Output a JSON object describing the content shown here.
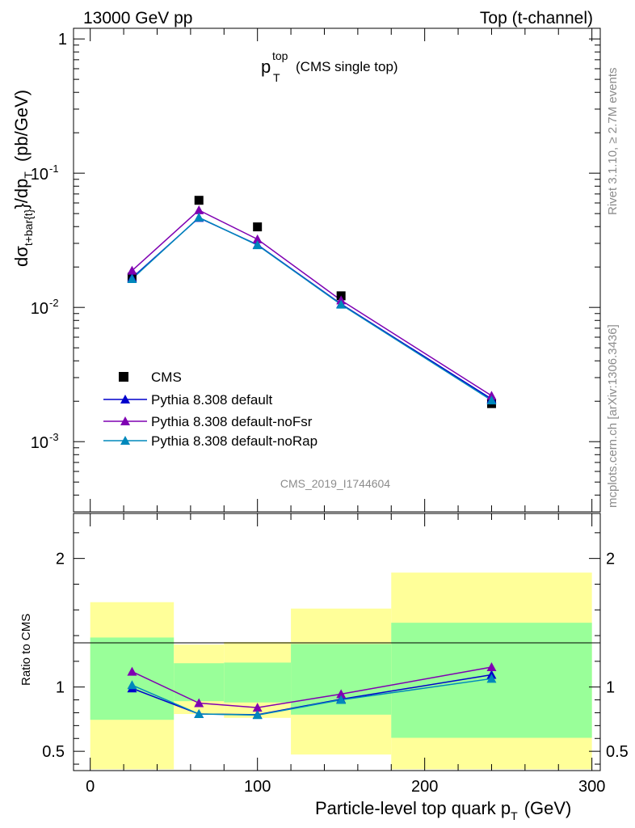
{
  "header": {
    "left": "13000 GeV pp",
    "right": "Top (t-channel)"
  },
  "plot_title": {
    "main": "p",
    "sup": "top",
    "sub": "T",
    "note": "(CMS single top)"
  },
  "y_label": {
    "p1": "dσ",
    "p1_sub": "t+bar{t}",
    "p2": "}/dp",
    "p2_sub": "T",
    "p3": "(pb/GeV)"
  },
  "side_text": {
    "rivet": "Rivet 3.1.10, ≥ 2.7M events",
    "mcplots": "mcplots.cern.ch [arXiv:1306.3436]"
  },
  "watermark": "CMS_2019_I1744604",
  "x_label": {
    "main": "Particle-level top quark p",
    "sub": "T",
    "unit": "(GeV)"
  },
  "ratio_label": "Ratio to CMS",
  "colors": {
    "default": "#0000cc",
    "noFsr": "#7f00b2",
    "noRap": "#0088bb",
    "band_outer": "#ffff99",
    "band_inner": "#99ff99",
    "data": "#000000"
  },
  "chart_data": [
    {
      "type": "line",
      "panel": "main",
      "y_scale": "log",
      "xlim": [
        -10,
        305
      ],
      "ylim": [
        0.0003,
        1.2
      ],
      "x_ticks": [
        "0",
        "100",
        "200",
        "300"
      ],
      "y_ticks": [
        "1",
        "10^{-1}",
        "10^{-2}",
        "10^{-3}"
      ],
      "x": [
        25,
        65,
        100,
        150,
        240
      ],
      "series": [
        {
          "name": "CMS",
          "marker": "square",
          "values": [
            0.0168,
            0.0628,
            0.0398,
            0.0122,
            0.00192
          ]
        },
        {
          "name": "Pythia 8.308 default",
          "marker": "triangle",
          "values": [
            0.0166,
            0.0465,
            0.0293,
            0.0106,
            0.00208
          ]
        },
        {
          "name": "Pythia 8.308 default-noFsr",
          "marker": "triangle",
          "values": [
            0.0188,
            0.053,
            0.0322,
            0.0113,
            0.0022
          ]
        },
        {
          "name": "Pythia 8.308 default-noRap",
          "marker": "triangle",
          "values": [
            0.0163,
            0.0468,
            0.0291,
            0.0105,
            0.00203
          ]
        }
      ],
      "legend_position": "lower-left"
    },
    {
      "type": "line",
      "panel": "ratio",
      "xlim": [
        -10,
        305
      ],
      "ylim": [
        0.35,
        2.35
      ],
      "y_ticks": [
        "0.5",
        "1",
        "2"
      ],
      "x_ticks": [
        "0",
        "100",
        "200",
        "300"
      ],
      "x": [
        25,
        65,
        100,
        150,
        240
      ],
      "bands": [
        {
          "x0": 0,
          "x1": 50,
          "outer": [
            0.36,
            1.66
          ],
          "inner": [
            0.745,
            1.385
          ]
        },
        {
          "x0": 50,
          "x1": 80,
          "outer": [
            0.79,
            1.33
          ],
          "inner": [
            0.89,
            1.185
          ]
        },
        {
          "x0": 80,
          "x1": 120,
          "outer": [
            0.76,
            1.35
          ],
          "inner": [
            0.88,
            1.19
          ]
        },
        {
          "x0": 120,
          "x1": 180,
          "outer": [
            0.475,
            1.61
          ],
          "inner": [
            0.785,
            1.335
          ]
        },
        {
          "x0": 180,
          "x1": 300,
          "outer": [
            0.36,
            1.89
          ],
          "inner": [
            0.605,
            1.5
          ]
        }
      ],
      "series": [
        {
          "name": "Pythia 8.308 default",
          "values": [
            0.99,
            0.79,
            0.785,
            0.905,
            1.095
          ]
        },
        {
          "name": "Pythia 8.308 default-noFsr",
          "values": [
            1.12,
            0.875,
            0.84,
            0.945,
            1.155
          ]
        },
        {
          "name": "Pythia 8.308 default-noRap",
          "values": [
            1.015,
            0.79,
            0.782,
            0.9,
            1.065
          ]
        }
      ]
    }
  ]
}
